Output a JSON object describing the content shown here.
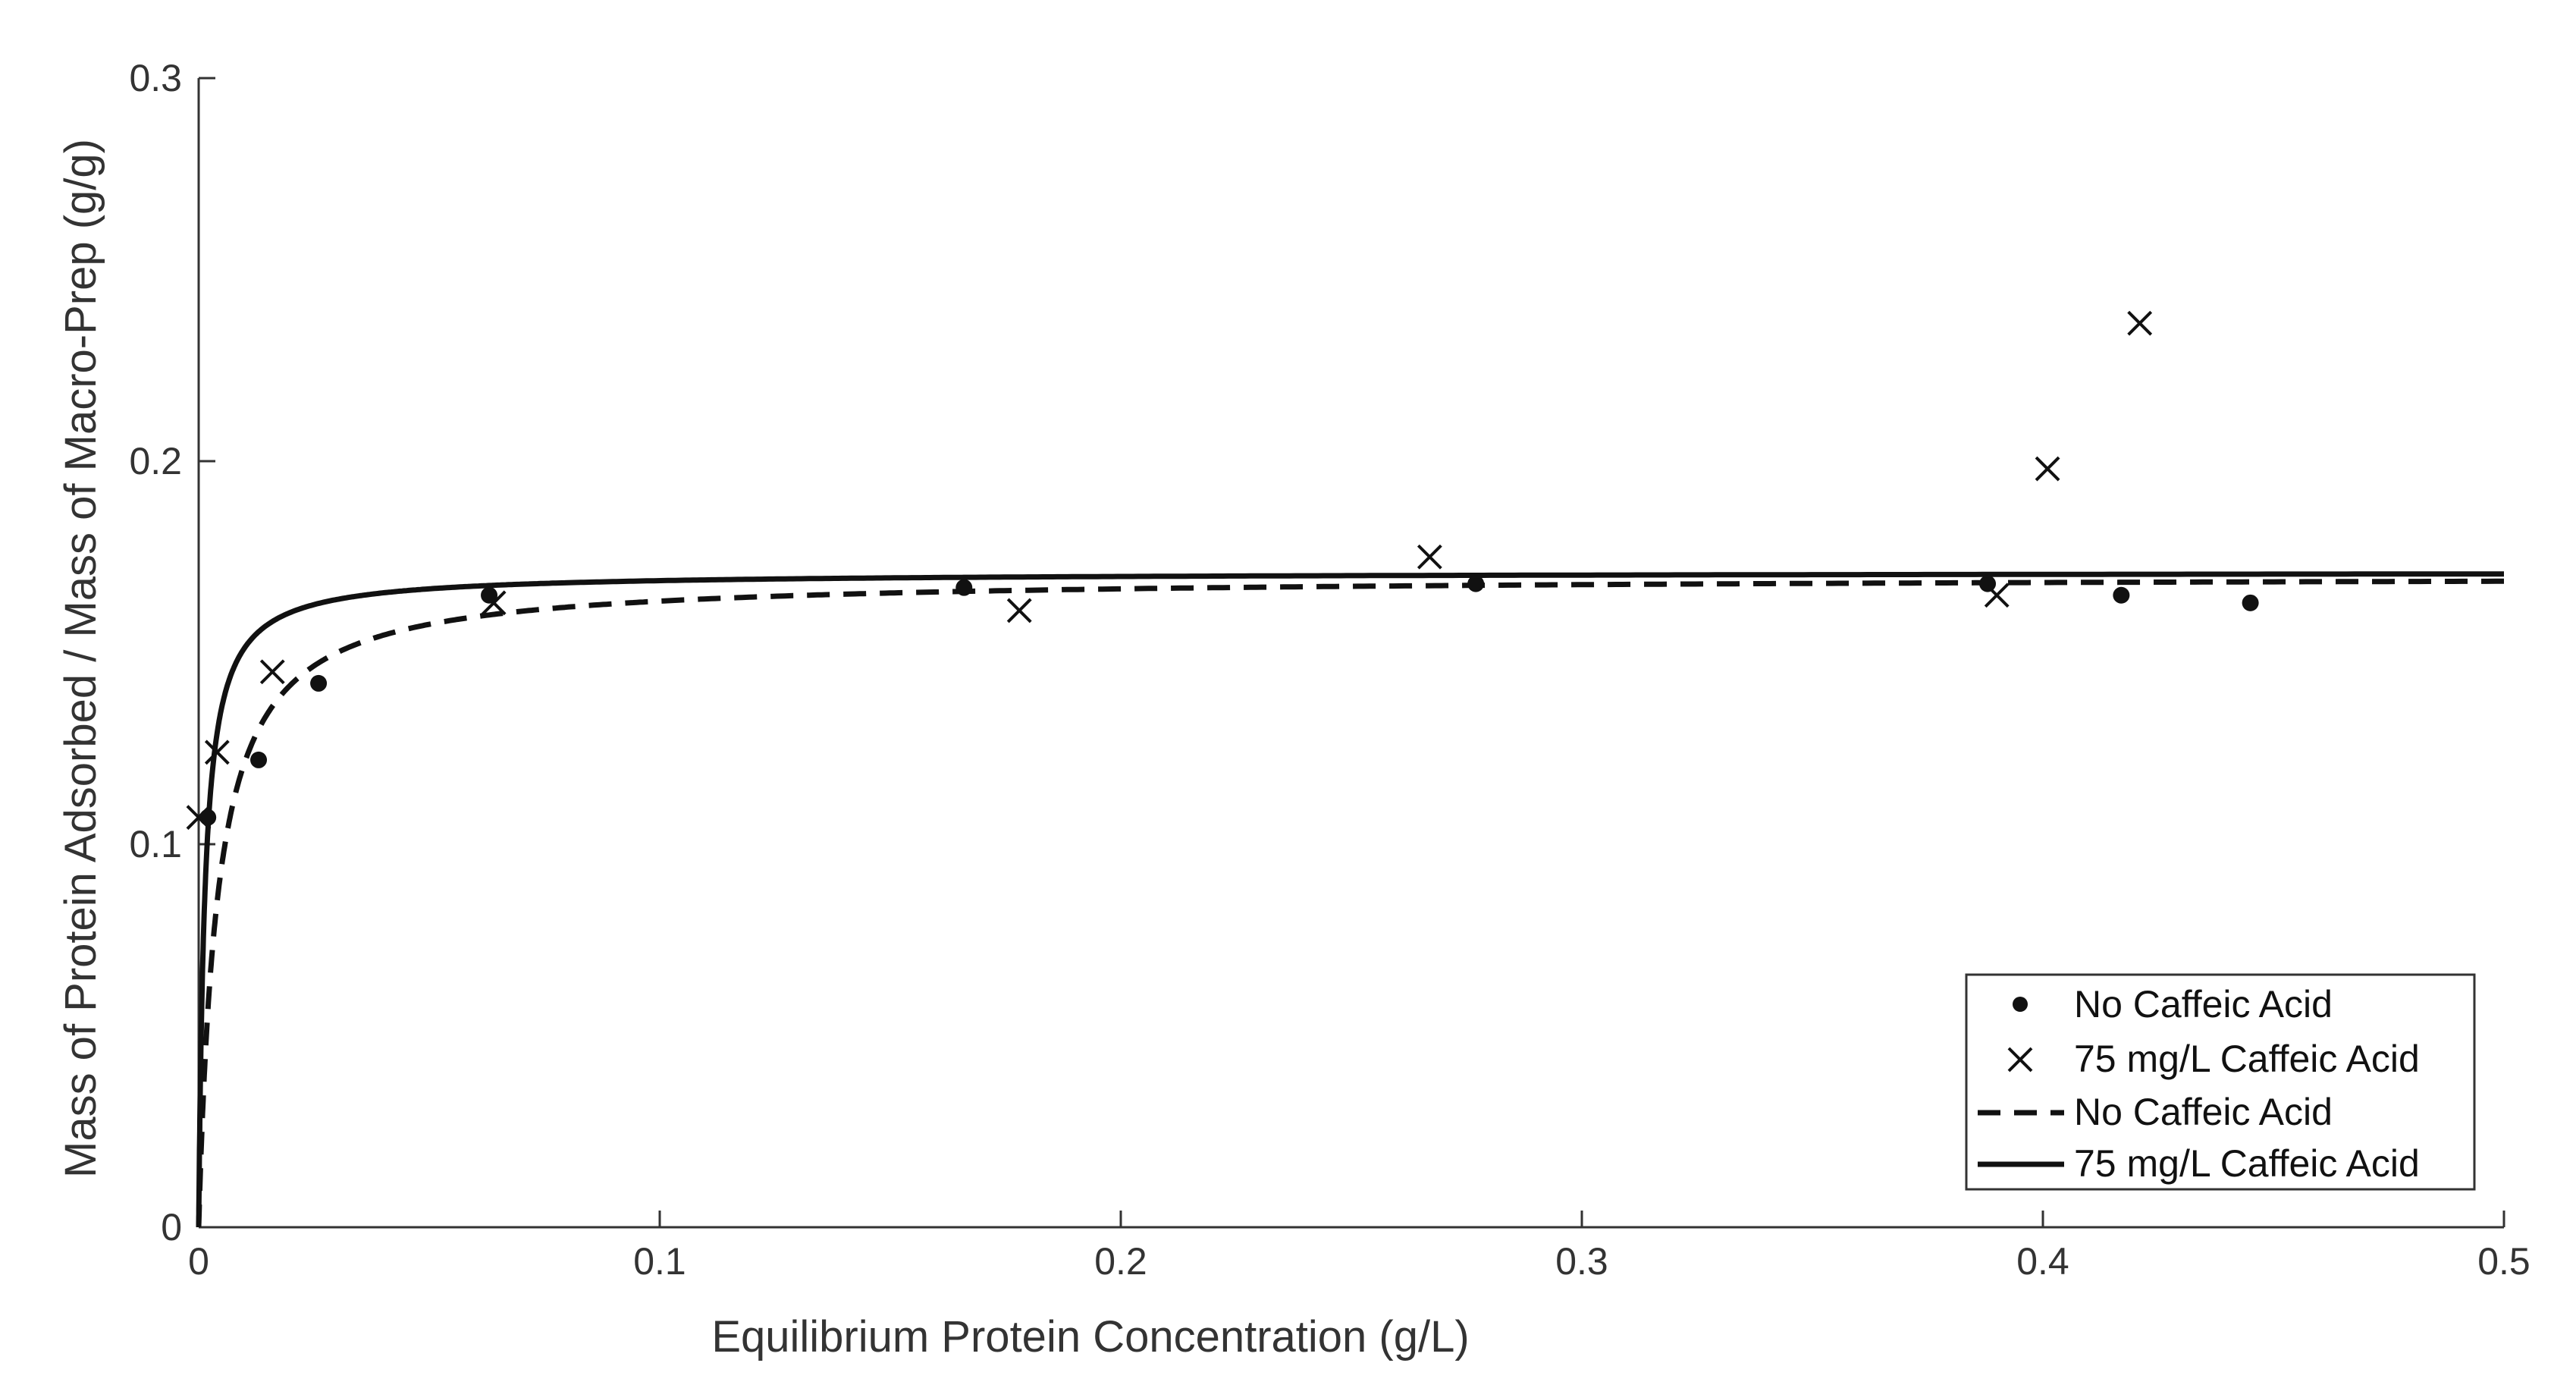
{
  "chart_data": {
    "type": "scatter",
    "title": "",
    "xlabel": "Equilibrium Protein Concentration (g/L)",
    "ylabel": "Mass of Protein Adsorbed / Mass of Macro-Prep (g/g)",
    "xlim": [
      0,
      0.5
    ],
    "ylim": [
      0,
      0.3
    ],
    "xticks": [
      0,
      0.1,
      0.2,
      0.3,
      0.4,
      0.5
    ],
    "xtick_labels": [
      "0",
      "0.1",
      "0.2",
      "0.3",
      "0.4",
      "0.5"
    ],
    "yticks": [
      0,
      0.1,
      0.2,
      0.3
    ],
    "ytick_labels": [
      "0",
      "0.1",
      "0.2",
      "0.3"
    ],
    "grid": false,
    "legend_position": "bottom-right",
    "series": [
      {
        "name": "No Caffeic Acid",
        "kind": "markers",
        "marker": "dot",
        "points": [
          [
            0.002,
            0.107
          ],
          [
            0.013,
            0.122
          ],
          [
            0.026,
            0.142
          ],
          [
            0.063,
            0.165
          ],
          [
            0.166,
            0.167
          ],
          [
            0.277,
            0.168
          ],
          [
            0.388,
            0.168
          ],
          [
            0.417,
            0.165
          ],
          [
            0.445,
            0.163
          ]
        ]
      },
      {
        "name": "75 mg/L Caffeic Acid",
        "kind": "markers",
        "marker": "x",
        "points": [
          [
            0.0,
            0.107
          ],
          [
            0.004,
            0.124
          ],
          [
            0.016,
            0.145
          ],
          [
            0.064,
            0.163
          ],
          [
            0.178,
            0.161
          ],
          [
            0.267,
            0.175
          ],
          [
            0.39,
            0.165
          ],
          [
            0.401,
            0.198
          ],
          [
            0.421,
            0.236
          ]
        ]
      },
      {
        "name": "No Caffeic Acid",
        "kind": "line",
        "dash": "dashed",
        "model": "Langmuir q = qmax*C/(Kd + C)",
        "qmax": 0.17,
        "Kd": 0.004
      },
      {
        "name": "75 mg/L Caffeic Acid",
        "kind": "line",
        "dash": "solid",
        "model": "Langmuir q = qmax*C/(Kd + C)",
        "qmax": 0.171,
        "Kd": 0.0013
      }
    ],
    "legend": [
      {
        "label": "No Caffeic Acid",
        "symbol": "dot"
      },
      {
        "label": "75 mg/L Caffeic Acid",
        "symbol": "x"
      },
      {
        "label": "No Caffeic Acid",
        "symbol": "dashed-line"
      },
      {
        "label": "75 mg/L Caffeic Acid",
        "symbol": "solid-line"
      }
    ]
  }
}
